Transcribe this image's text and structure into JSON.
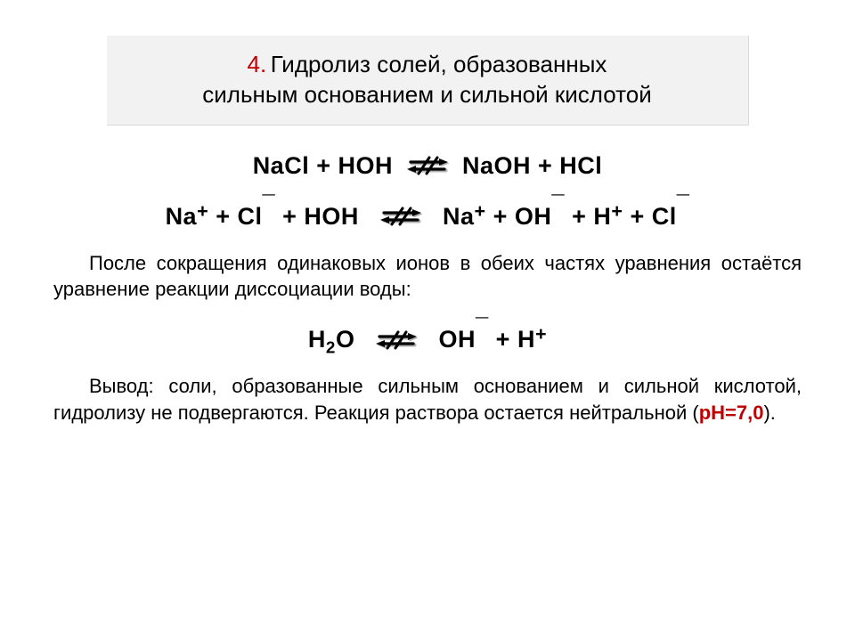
{
  "title": {
    "number": "4.",
    "text_line1": "Гидролиз солей, образованных",
    "text_line2": "сильным основанием и сильной кислотой"
  },
  "equations": {
    "eq1_left": "NaCl + HOH",
    "eq1_right": "NaOH + HCl",
    "eq2_html": "Na<sup>+</sup> + Cl<span class='big-sup'>¯</span> + HOH&nbsp;",
    "eq2_right_html": "&nbsp;Na<sup>+</sup> + OH<span class='big-sup'>¯</span> + H<sup>+</sup> + Cl<span class='big-sup'>¯</span>",
    "eq3_left_html": "H<sub>2</sub>O&nbsp;",
    "eq3_right_html": "&nbsp;OH<span class='big-sup'>¯</span> + H<sup>+</sup>"
  },
  "paragraphs": {
    "p1": "После сокращения одинаковых ионов в обеих частях уравнения остаётся уравнение реакции диссоциации воды:",
    "p2_before": "Вывод: соли, образованные сильным основанием и сильной кислотой, гидролизу не подвергаются. Реакция раствора остается нейтральной (",
    "ph_label": "pH=7,0",
    "p2_after": ")."
  },
  "colors": {
    "accent": "#c00000",
    "box_bg": "#f2f2f2",
    "box_border": "#d9d9d9",
    "text": "#000000",
    "arrow_shadow": "#b0b0b0"
  },
  "arrow_svg": {
    "width": 50,
    "height": 30
  }
}
